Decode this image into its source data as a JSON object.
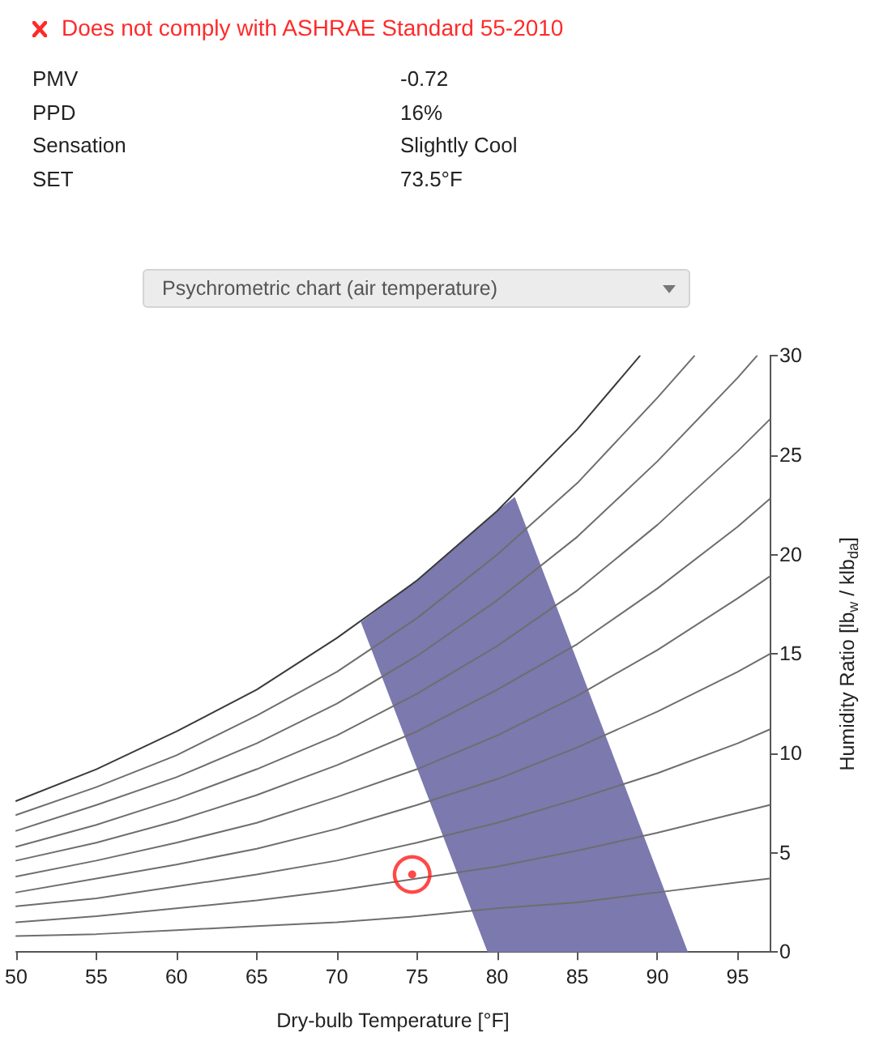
{
  "chart_data": {
    "type": "line",
    "title": "Does not comply with ASHRAE Standard 55-2010",
    "subtitle": "Psychrometric chart (air temperature)",
    "annotations": [
      "PMV",
      "-0.72",
      "PPD",
      "16%",
      "Sensation",
      "Slightly Cool",
      "SET",
      "73.5°F"
    ],
    "xlabel": "Dry-bulb Temperature [°F]",
    "ylabel": "Humidity Ratio [lb$_{w}$ / klb$_{da}$]",
    "xlim": [
      50,
      97
    ],
    "ylim": [
      0,
      30
    ],
    "xticks": [
      50,
      55,
      60,
      65,
      70,
      75,
      80,
      85,
      90,
      95
    ],
    "yticks": [
      0,
      5,
      10,
      15,
      20,
      25,
      30
    ],
    "line_style": "solid",
    "marker": "none",
    "series": [
      {
        "type": "area",
        "color": "#7b79ae",
        "x": [
          79.4,
          71.5,
          75,
          80,
          81.1,
          91.9
        ],
        "values": [
          0,
          16.6,
          18.7,
          22.2,
          22.9,
          0
        ]
      },
      {
        "color": "#6e6e6e",
        "x": [
          50,
          55,
          60,
          65,
          70,
          75,
          80,
          85,
          90,
          95,
          97
        ],
        "values": [
          0.8,
          0.9,
          1.1,
          1.3,
          1.5,
          1.8,
          2.2,
          2.5,
          3.0,
          3.5,
          3.7
        ]
      },
      {
        "color": "#6e6e6e",
        "x": [
          50,
          55,
          60,
          65,
          70,
          75,
          80,
          85,
          90,
          95,
          97
        ],
        "values": [
          1.5,
          1.8,
          2.2,
          2.6,
          3.1,
          3.7,
          4.3,
          5.1,
          6.0,
          7.0,
          7.4
        ]
      },
      {
        "color": "#6e6e6e",
        "x": [
          50,
          55,
          60,
          65,
          70,
          75,
          80,
          85,
          90,
          95,
          97
        ],
        "values": [
          2.3,
          2.7,
          3.3,
          3.9,
          4.6,
          5.5,
          6.5,
          7.7,
          9.0,
          10.5,
          11.2
        ]
      },
      {
        "color": "#6e6e6e",
        "x": [
          50,
          55,
          60,
          65,
          70,
          75,
          80,
          85,
          90,
          95,
          97
        ],
        "values": [
          3.0,
          3.7,
          4.4,
          5.2,
          6.2,
          7.4,
          8.7,
          10.3,
          12.1,
          14.1,
          15.0
        ]
      },
      {
        "color": "#6e6e6e",
        "x": [
          50,
          55,
          60,
          65,
          70,
          75,
          80,
          85,
          90,
          95,
          97
        ],
        "values": [
          3.8,
          4.6,
          5.5,
          6.5,
          7.8,
          9.2,
          10.9,
          12.9,
          15.2,
          17.8,
          18.9
        ]
      },
      {
        "color": "#6e6e6e",
        "x": [
          50,
          55,
          60,
          65,
          70,
          75,
          80,
          85,
          90,
          95,
          97
        ],
        "values": [
          4.6,
          5.5,
          6.6,
          7.9,
          9.4,
          11.1,
          13.2,
          15.5,
          18.3,
          21.4,
          22.8
        ]
      },
      {
        "color": "#6e6e6e",
        "x": [
          50,
          55,
          60,
          65,
          70,
          75,
          80,
          85,
          90,
          95,
          97
        ],
        "values": [
          5.3,
          6.4,
          7.7,
          9.2,
          10.9,
          13.0,
          15.4,
          18.2,
          21.5,
          25.2,
          26.8
        ]
      },
      {
        "color": "#6e6e6e",
        "x": [
          50,
          55,
          60,
          65,
          70,
          75,
          80,
          85,
          90,
          95,
          96.2
        ],
        "values": [
          6.1,
          7.4,
          8.8,
          10.5,
          12.5,
          14.9,
          17.7,
          20.9,
          24.7,
          28.9,
          30
        ]
      },
      {
        "color": "#6e6e6e",
        "x": [
          50,
          55,
          60,
          65,
          70,
          75,
          80,
          85,
          90,
          92.3
        ],
        "values": [
          6.9,
          8.3,
          9.9,
          11.9,
          14.1,
          16.8,
          20.0,
          23.6,
          27.9,
          30
        ]
      },
      {
        "color": "#3a3a3a",
        "x": [
          50,
          55,
          60,
          65,
          70,
          75,
          80,
          85,
          88.9
        ],
        "values": [
          7.6,
          9.2,
          11.1,
          13.2,
          15.8,
          18.7,
          22.2,
          26.3,
          30
        ]
      },
      {
        "type": "scatter",
        "color": "#ff1a1a",
        "marker": "circle",
        "x": [
          74.7
        ],
        "values": [
          3.9
        ]
      }
    ]
  }
}
